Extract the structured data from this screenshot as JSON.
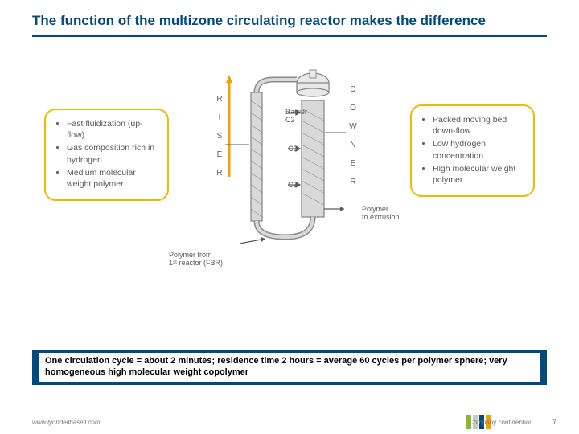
{
  "title": "The function of the multizone circulating reactor makes the difference",
  "colors": {
    "brand_blue": "#004a7c",
    "box_border": "#f5b800",
    "text_gray": "#5a5a5a",
    "reactor_fill": "#d9d9d9",
    "reactor_stroke": "#8a8a8a",
    "arrow_orange": "#f2a000"
  },
  "left_box": {
    "items": [
      "Fast fluidization (up-flow)",
      "Gas composition rich in hydrogen",
      "Medium molecular weight polymer"
    ]
  },
  "right_box": {
    "items": [
      "Packed moving bed down-flow",
      "Low hydrogen concentration",
      "High molecular weight polymer"
    ]
  },
  "vertical_labels": {
    "left": "RISER",
    "right": "DOWNER"
  },
  "diagram_labels": {
    "barrier": "Barrier\nC2",
    "c2_mid": "C2",
    "c2_bot": "C2",
    "polymer_in": "Polymer from\n1ˢᵗ reactor (FBR)",
    "polymer_out": "Polymer\nto extrusion"
  },
  "summary": "One circulation cycle = about 2 minutes; residence time 2 hours = average 60 cycles per polymer sphere; very homogeneous high molecular weight copolymer",
  "footer": {
    "url": "www.lyondellbasell.com",
    "confidential": "Company confidential",
    "page": "7",
    "bar_colors": [
      "#8ab833",
      "#c9c9c9",
      "#004a7c",
      "#f2a000"
    ]
  }
}
